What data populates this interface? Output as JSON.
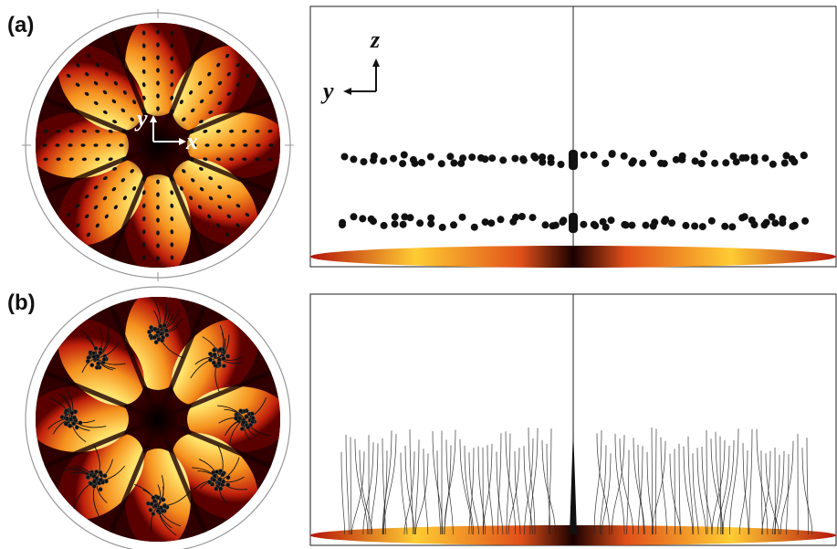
{
  "labels": {
    "a": "(a)",
    "b": "(b)"
  },
  "axes_top": {
    "y": "y",
    "x": "x"
  },
  "axes_side": {
    "z": "z",
    "y": "y"
  },
  "pattern": {
    "lobes": 8
  },
  "colors": {
    "bright": "#fffbd2",
    "yellow": "#ffd23c",
    "orange": "#f0781e",
    "red": "#b4140a",
    "dark": "#1a0000",
    "particle": "#111111",
    "frame": "#444444",
    "rim": "#999999"
  }
}
